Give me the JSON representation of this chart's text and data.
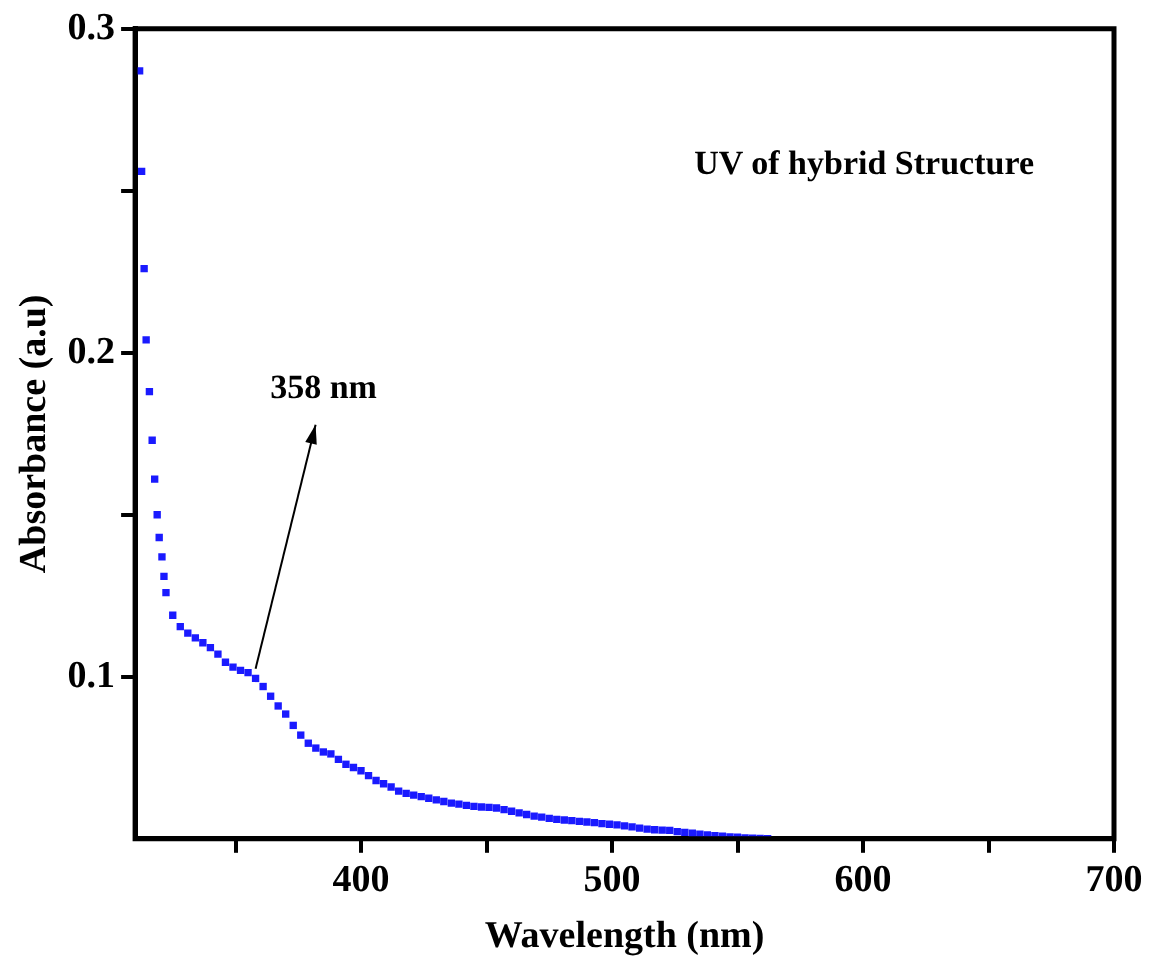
{
  "chart_data": {
    "type": "scatter",
    "xlabel": "Wavelength (nm)",
    "ylabel": "Absorbance (a.u)",
    "x": [
      311.8,
      312.6,
      313.6,
      314.4,
      315.7,
      316.8,
      317.8,
      318.8,
      319.6,
      320.7,
      321.5,
      322.3,
      325,
      328,
      331,
      334,
      337,
      340,
      343,
      346,
      349,
      352,
      355,
      358,
      361,
      364,
      367,
      370,
      373,
      376,
      379,
      382,
      385,
      388,
      391,
      394,
      397,
      400,
      403,
      406,
      409,
      412,
      415,
      418,
      421,
      424,
      427,
      430,
      433,
      436,
      439,
      442,
      445,
      448,
      451,
      454,
      457,
      460,
      463,
      466,
      469,
      472,
      475,
      478,
      481,
      484,
      487,
      490,
      493,
      496,
      499,
      502,
      505,
      508,
      511,
      514,
      517,
      520,
      523,
      526,
      529,
      532,
      535,
      538,
      541,
      544,
      547,
      550,
      553,
      556,
      559,
      562
    ],
    "series": [
      {
        "color": "#1a1aff",
        "values": [
          0.287,
          0.256,
          0.226,
          0.204,
          0.188,
          0.173,
          0.161,
          0.15,
          0.143,
          0.137,
          0.131,
          0.126,
          0.119,
          0.1155,
          0.1135,
          0.112,
          0.1105,
          0.109,
          0.107,
          0.1045,
          0.103,
          0.102,
          0.1013,
          0.0995,
          0.097,
          0.094,
          0.091,
          0.0885,
          0.085,
          0.082,
          0.0795,
          0.078,
          0.0768,
          0.0762,
          0.0745,
          0.073,
          0.072,
          0.071,
          0.0695,
          0.068,
          0.067,
          0.066,
          0.0647,
          0.064,
          0.0635,
          0.063,
          0.0625,
          0.062,
          0.0615,
          0.061,
          0.0607,
          0.0603,
          0.06,
          0.0598,
          0.0597,
          0.0595,
          0.059,
          0.0585,
          0.058,
          0.0575,
          0.057,
          0.0567,
          0.0563,
          0.056,
          0.0558,
          0.0556,
          0.0554,
          0.0552,
          0.055,
          0.0547,
          0.0545,
          0.0543,
          0.054,
          0.0537,
          0.0533,
          0.053,
          0.0528,
          0.0527,
          0.0526,
          0.0522,
          0.052,
          0.0517,
          0.0514,
          0.0512,
          0.051,
          0.0508,
          0.0506,
          0.0505,
          0.0503,
          0.0502,
          0.0501,
          0.05
        ]
      }
    ],
    "xlim": [
      310,
      700
    ],
    "ylim": [
      0.05,
      0.3
    ],
    "xticks": [
      {
        "value": 350,
        "label": null
      },
      400,
      {
        "value": 450,
        "label": null
      },
      500,
      {
        "value": 550,
        "label": null
      },
      600,
      {
        "value": 650,
        "label": null
      },
      700
    ],
    "yticks": [
      0.1,
      {
        "value": 0.15,
        "label": null
      },
      0.2,
      {
        "value": 0.25,
        "label": null
      },
      0.3
    ],
    "marker": "square",
    "grid": false,
    "legend": false,
    "annotations": [
      "UV of hybrid Structure",
      {
        "text": "358 nm",
        "x": 358,
        "y": 0.1
      }
    ]
  }
}
